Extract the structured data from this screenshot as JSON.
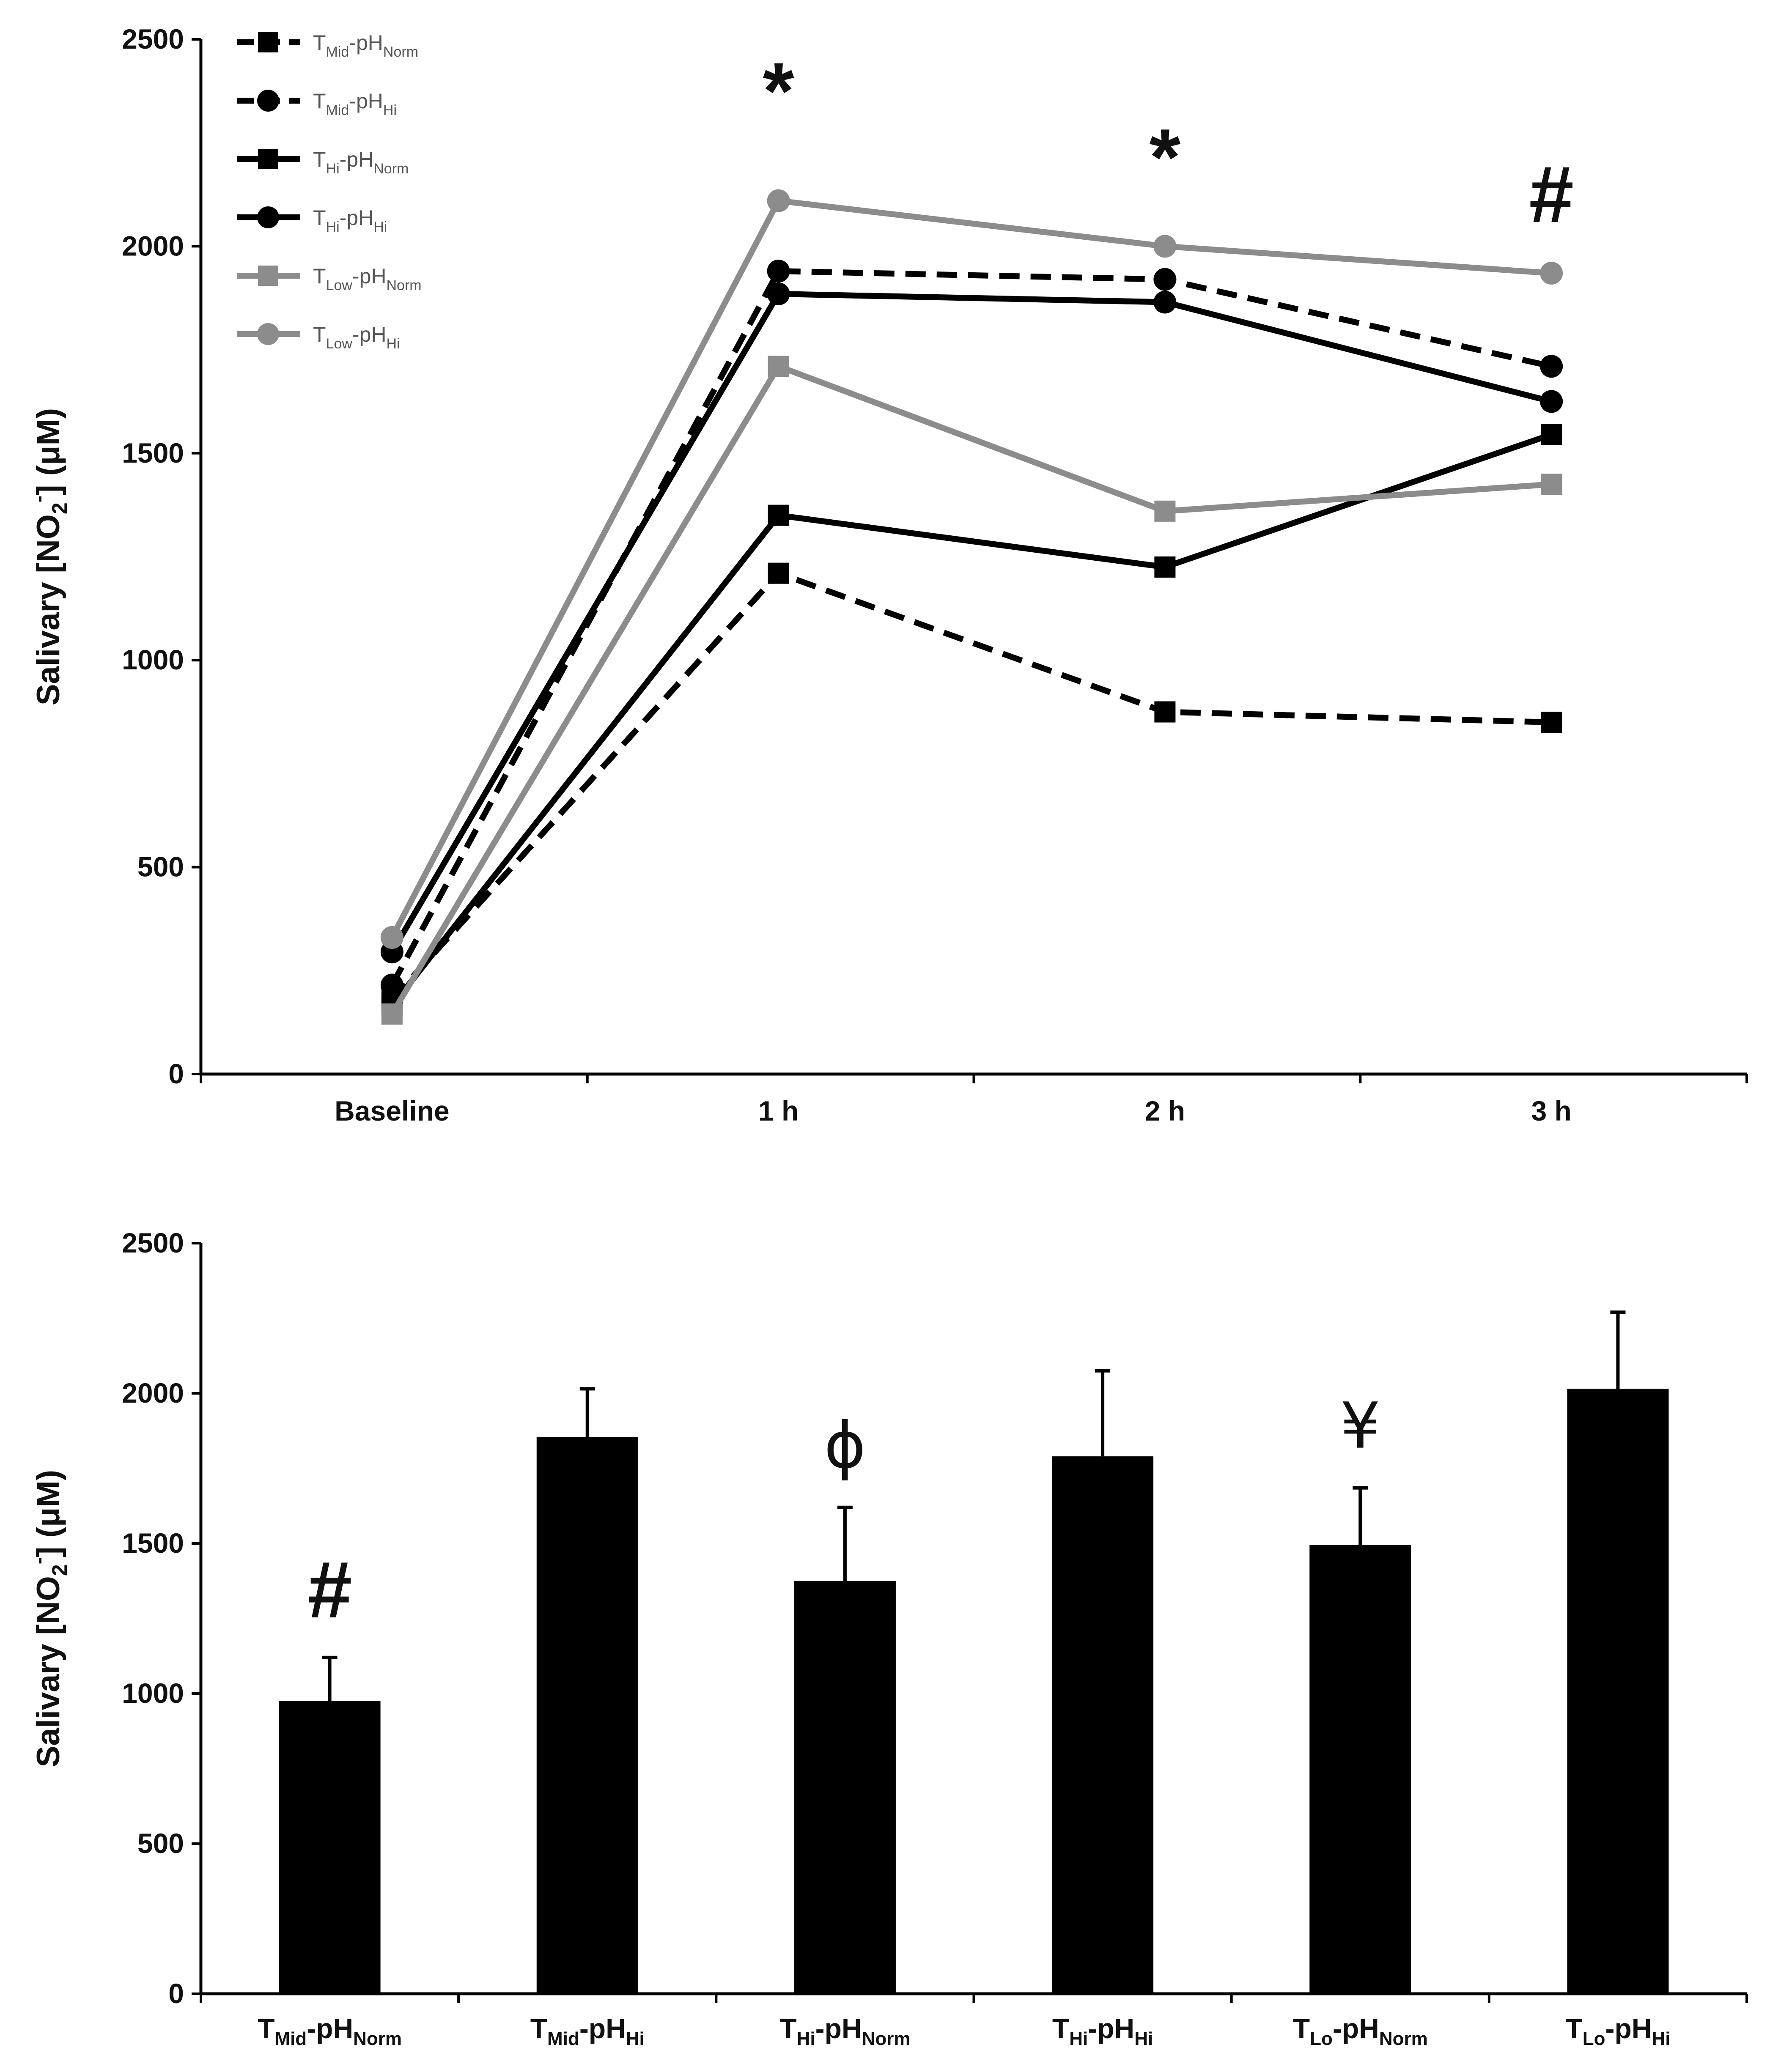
{
  "chart_data": [
    {
      "type": "line",
      "ylabel": "Salivary [NO2-] (μM)",
      "ylabel_parts": {
        "pre": "Salivary [NO",
        "sub": "2",
        "sup": "-",
        "post": "] (μM)"
      },
      "ylim": [
        0,
        2500
      ],
      "yticks": [
        0,
        500,
        1000,
        1500,
        2000,
        2500
      ],
      "categories": [
        "Baseline",
        "1 h",
        "2 h",
        "3 h"
      ],
      "grid": false,
      "legend_position": "top-left",
      "series": [
        {
          "name": "TMid-pHNorm",
          "T": "T",
          "Tsub": "Mid",
          "pH": "-pH",
          "pHsub": "Norm",
          "color": "#000000",
          "dash": true,
          "marker": "square",
          "values": [
            180,
            1210,
            875,
            850
          ]
        },
        {
          "name": "TMid-pHHi",
          "T": "T",
          "Tsub": "Mid",
          "pH": "-pH",
          "pHsub": "Hi",
          "color": "#000000",
          "dash": true,
          "marker": "circle",
          "values": [
            215,
            1940,
            1920,
            1710
          ]
        },
        {
          "name": "THi-pHNorm",
          "T": "T",
          "Tsub": "Hi",
          "pH": "-pH",
          "pHsub": "Norm",
          "color": "#000000",
          "dash": false,
          "marker": "square",
          "values": [
            165,
            1350,
            1225,
            1545
          ]
        },
        {
          "name": "THi-pHHi",
          "T": "T",
          "Tsub": "Hi",
          "pH": "-pH",
          "pHsub": "Hi",
          "color": "#000000",
          "dash": false,
          "marker": "circle",
          "values": [
            295,
            1885,
            1865,
            1625
          ]
        },
        {
          "name": "TLow-pHNorm",
          "T": "T",
          "Tsub": "Low",
          "pH": "-pH",
          "pHsub": "Norm",
          "color": "#8c8c8c",
          "dash": false,
          "marker": "square",
          "values": [
            145,
            1710,
            1360,
            1425
          ]
        },
        {
          "name": "TLow-pHHi",
          "T": "T",
          "Tsub": "Low",
          "pH": "-pH",
          "pHsub": "Hi",
          "color": "#8c8c8c",
          "dash": false,
          "marker": "circle",
          "values": [
            330,
            2110,
            2000,
            1935
          ]
        }
      ],
      "annotations": [
        {
          "category": "1 h",
          "text": "*",
          "value": 2380
        },
        {
          "category": "2 h",
          "text": "*",
          "value": 2220
        },
        {
          "category": "3 h",
          "text": "#",
          "value": 2130
        }
      ]
    },
    {
      "type": "bar",
      "ylabel": "Salivary [NO2-] (μM)",
      "ylabel_parts": {
        "pre": "Salivary [NO",
        "sub": "2",
        "sup": "-",
        "post": "] (μM)"
      },
      "ylim": [
        0,
        2500
      ],
      "yticks": [
        0,
        500,
        1000,
        1500,
        2000,
        2500
      ],
      "grid": false,
      "bar_color": "#000000",
      "categories": [
        {
          "name": "TMid-pHNorm",
          "T": "T",
          "Tsub": "Mid",
          "pH": "-pH",
          "pHsub": "Norm"
        },
        {
          "name": "TMid-pHHi",
          "T": "T",
          "Tsub": "Mid",
          "pH": "-pH",
          "pHsub": "Hi"
        },
        {
          "name": "THi-pHNorm",
          "T": "T",
          "Tsub": "Hi",
          "pH": "-pH",
          "pHsub": "Norm"
        },
        {
          "name": "THi-pHHi",
          "T": "T",
          "Tsub": "Hi",
          "pH": "-pH",
          "pHsub": "Hi"
        },
        {
          "name": "TLo-pHNorm",
          "T": "T",
          "Tsub": "Lo",
          "pH": "-pH",
          "pHsub": "Norm"
        },
        {
          "name": "TLo-pHHi",
          "T": "T",
          "Tsub": "Lo",
          "pH": "-pH",
          "pHsub": "Hi"
        }
      ],
      "values": [
        975,
        1855,
        1375,
        1790,
        1495,
        2015
      ],
      "error_upper": [
        145,
        160,
        245,
        285,
        190,
        255
      ],
      "annotations": [
        {
          "index": 0,
          "text": "#",
          "style": "bold"
        },
        {
          "index": 2,
          "text": "ϕ",
          "style": "thin"
        },
        {
          "index": 4,
          "text": "¥",
          "style": "thin"
        }
      ]
    }
  ]
}
